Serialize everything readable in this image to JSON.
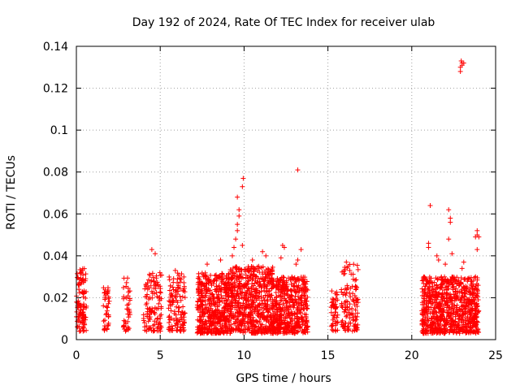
{
  "chart_data": {
    "type": "scatter",
    "title": "Day 192 of 2024, Rate Of TEC Index for receiver ulab",
    "xlabel": "GPS time / hours",
    "ylabel": "ROTI / TECUs",
    "xlim": [
      0,
      25
    ],
    "ylim": [
      0,
      0.14
    ],
    "xticks": [
      "0",
      "5",
      "10",
      "15",
      "20",
      "25"
    ],
    "yticks": [
      "0",
      "0.02",
      "0.04",
      "0.06",
      "0.08",
      "0.1",
      "0.12",
      "0.14"
    ],
    "xtick_values": [
      0,
      5,
      10,
      15,
      20,
      25
    ],
    "ytick_values": [
      0,
      0.02,
      0.04,
      0.06,
      0.08,
      0.1,
      0.12,
      0.14
    ],
    "grid": true,
    "marker": "+",
    "series_color": "#ff0000",
    "clusters": [
      {
        "x": [
          0.0,
          0.6
        ],
        "y": [
          0.004,
          0.034
        ],
        "n": 110
      },
      {
        "x": [
          1.6,
          2.0
        ],
        "y": [
          0.004,
          0.025
        ],
        "n": 40
      },
      {
        "x": [
          2.8,
          3.2
        ],
        "y": [
          0.004,
          0.03
        ],
        "n": 40
      },
      {
        "x": [
          4.0,
          5.1
        ],
        "y": [
          0.004,
          0.032
        ],
        "n": 120
      },
      {
        "x": [
          5.5,
          6.5
        ],
        "y": [
          0.004,
          0.033
        ],
        "n": 120
      },
      {
        "x": [
          7.2,
          9.0
        ],
        "y": [
          0.003,
          0.032
        ],
        "n": 450
      },
      {
        "x": [
          9.0,
          11.8
        ],
        "y": [
          0.003,
          0.035
        ],
        "n": 650
      },
      {
        "x": [
          11.8,
          13.8
        ],
        "y": [
          0.003,
          0.03
        ],
        "n": 450
      },
      {
        "x": [
          15.2,
          15.6
        ],
        "y": [
          0.004,
          0.024
        ],
        "n": 50
      },
      {
        "x": [
          15.8,
          16.8
        ],
        "y": [
          0.004,
          0.036
        ],
        "n": 120
      },
      {
        "x": [
          20.6,
          24.0
        ],
        "y": [
          0.003,
          0.03
        ],
        "n": 800
      }
    ],
    "points": [
      {
        "x": 4.5,
        "y": 0.043
      },
      {
        "x": 4.7,
        "y": 0.041
      },
      {
        "x": 5.9,
        "y": 0.033
      },
      {
        "x": 7.8,
        "y": 0.036
      },
      {
        "x": 8.6,
        "y": 0.038
      },
      {
        "x": 9.3,
        "y": 0.04
      },
      {
        "x": 9.5,
        "y": 0.048
      },
      {
        "x": 9.6,
        "y": 0.052
      },
      {
        "x": 9.6,
        "y": 0.055
      },
      {
        "x": 9.7,
        "y": 0.059
      },
      {
        "x": 9.6,
        "y": 0.068
      },
      {
        "x": 9.7,
        "y": 0.062
      },
      {
        "x": 9.4,
        "y": 0.044
      },
      {
        "x": 9.9,
        "y": 0.073
      },
      {
        "x": 9.95,
        "y": 0.077
      },
      {
        "x": 9.9,
        "y": 0.045
      },
      {
        "x": 10.5,
        "y": 0.038
      },
      {
        "x": 11.1,
        "y": 0.042
      },
      {
        "x": 11.3,
        "y": 0.04
      },
      {
        "x": 12.3,
        "y": 0.045
      },
      {
        "x": 12.4,
        "y": 0.044
      },
      {
        "x": 12.2,
        "y": 0.039
      },
      {
        "x": 13.1,
        "y": 0.036
      },
      {
        "x": 13.2,
        "y": 0.038
      },
      {
        "x": 13.4,
        "y": 0.043
      },
      {
        "x": 13.2,
        "y": 0.081
      },
      {
        "x": 16.1,
        "y": 0.037
      },
      {
        "x": 16.3,
        "y": 0.033
      },
      {
        "x": 21.1,
        "y": 0.064
      },
      {
        "x": 21.0,
        "y": 0.046
      },
      {
        "x": 21.0,
        "y": 0.044
      },
      {
        "x": 21.5,
        "y": 0.04
      },
      {
        "x": 21.6,
        "y": 0.038
      },
      {
        "x": 22.0,
        "y": 0.036
      },
      {
        "x": 22.2,
        "y": 0.062
      },
      {
        "x": 22.3,
        "y": 0.058
      },
      {
        "x": 22.3,
        "y": 0.056
      },
      {
        "x": 22.2,
        "y": 0.048
      },
      {
        "x": 22.4,
        "y": 0.041
      },
      {
        "x": 22.9,
        "y": 0.128
      },
      {
        "x": 22.9,
        "y": 0.13
      },
      {
        "x": 23.0,
        "y": 0.132
      },
      {
        "x": 22.95,
        "y": 0.133
      },
      {
        "x": 23.0,
        "y": 0.131
      },
      {
        "x": 23.1,
        "y": 0.132
      },
      {
        "x": 23.1,
        "y": 0.037
      },
      {
        "x": 23.0,
        "y": 0.034
      },
      {
        "x": 23.8,
        "y": 0.049
      },
      {
        "x": 23.9,
        "y": 0.05
      },
      {
        "x": 23.9,
        "y": 0.052
      },
      {
        "x": 24.0,
        "y": 0.049
      },
      {
        "x": 23.9,
        "y": 0.043
      },
      {
        "x": 23.8,
        "y": 0.03
      }
    ]
  }
}
